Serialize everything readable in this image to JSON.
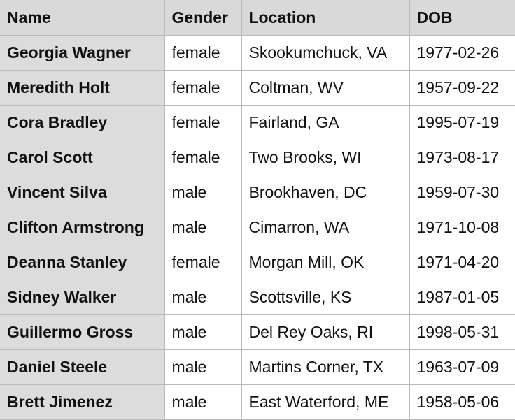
{
  "table": {
    "headers": [
      "Name",
      "Gender",
      "Location",
      "DOB"
    ],
    "rows": [
      {
        "name": "Georgia Wagner",
        "gender": "female",
        "location": "Skookumchuck, VA",
        "dob": "1977-02-26"
      },
      {
        "name": "Meredith Holt",
        "gender": "female",
        "location": "Coltman, WV",
        "dob": "1957-09-22"
      },
      {
        "name": "Cora Bradley",
        "gender": "female",
        "location": "Fairland, GA",
        "dob": "1995-07-19"
      },
      {
        "name": "Carol Scott",
        "gender": "female",
        "location": "Two Brooks, WI",
        "dob": "1973-08-17"
      },
      {
        "name": "Vincent Silva",
        "gender": "male",
        "location": "Brookhaven, DC",
        "dob": "1959-07-30"
      },
      {
        "name": "Clifton Armstrong",
        "gender": "male",
        "location": "Cimarron, WA",
        "dob": "1971-10-08"
      },
      {
        "name": "Deanna Stanley",
        "gender": "female",
        "location": "Morgan Mill, OK",
        "dob": "1971-04-20"
      },
      {
        "name": "Sidney Walker",
        "gender": "male",
        "location": "Scottsville, KS",
        "dob": "1987-01-05"
      },
      {
        "name": "Guillermo Gross",
        "gender": "male",
        "location": "Del Rey Oaks, RI",
        "dob": "1998-05-31"
      },
      {
        "name": "Daniel Steele",
        "gender": "male",
        "location": "Martins Corner, TX",
        "dob": "1963-07-09"
      },
      {
        "name": "Brett Jimenez",
        "gender": "male",
        "location": "East Waterford, ME",
        "dob": "1958-05-06"
      }
    ]
  }
}
